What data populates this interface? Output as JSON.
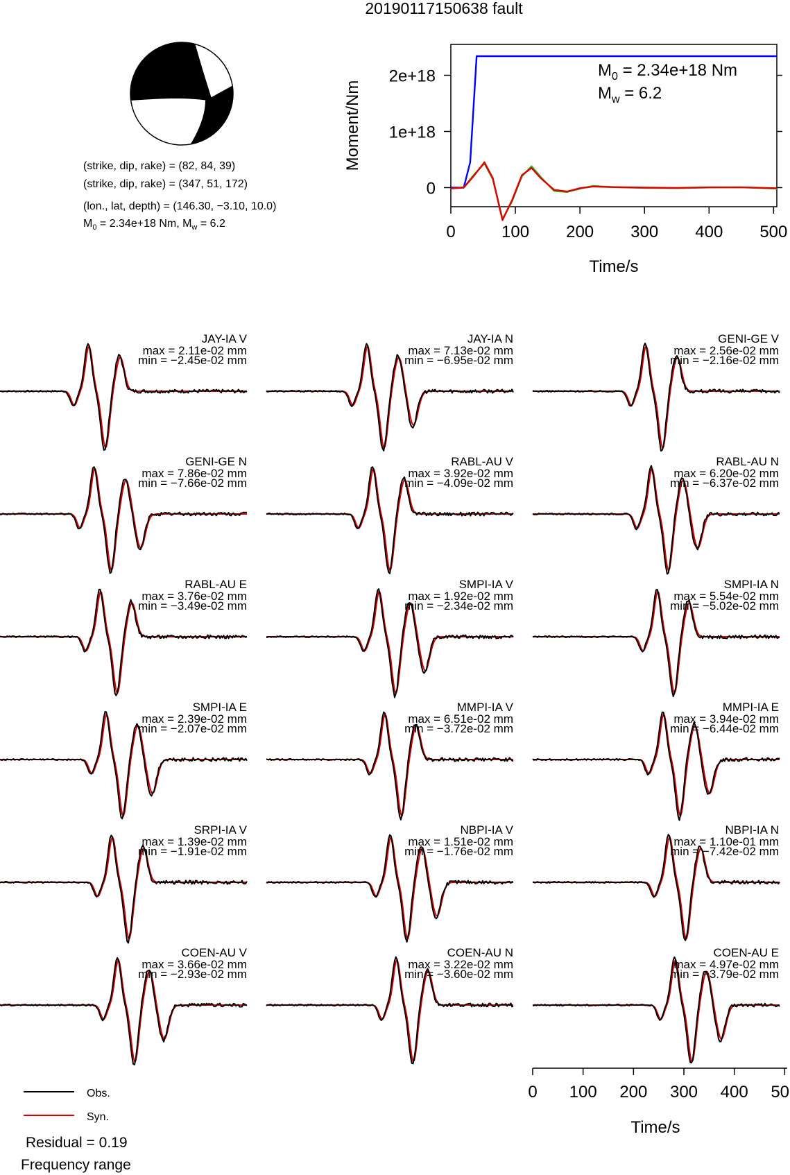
{
  "title": "20190117150638 fault",
  "mechanism": {
    "nodal_plane_1": "(strike, dip, rake) = (82, 84, 39)",
    "nodal_plane_2": "(strike, dip, rake) = (347, 51, 172)",
    "location": "(lon., lat, depth) = (146.30, −3.10, 10.0)",
    "moment_line": "M0 = 2.34e+18 Nm, Mw = 6.2"
  },
  "stf_chart": {
    "ylabel": "Moment/Nm",
    "xlabel": "Time/s",
    "x_ticks": [
      "0",
      "100",
      "200",
      "300",
      "400",
      "500"
    ],
    "y_ticks": [
      "2e+18",
      "1e+18",
      "0"
    ],
    "annotation_m0": "M0 = 2.34e+18 Nm",
    "annotation_mw": "Mw = 6.2"
  },
  "waveform_axis": {
    "xlabel": "Time/s",
    "x_ticks": [
      "0",
      "100",
      "200",
      "300",
      "400",
      "500"
    ]
  },
  "legend": {
    "obs": "Obs.",
    "syn": "Syn.",
    "residual": "Residual = 0.19",
    "frequency": "Frequency range"
  },
  "colors": {
    "observed": "#000000",
    "synthetic": "#e00000",
    "moment": "#0000ff",
    "stf_green": "#22bb22"
  },
  "chart_data": [
    {
      "type": "line",
      "xlabel": "Time/s",
      "ylabel": "Moment/Nm",
      "xlim": [
        0,
        505
      ],
      "ylim": [
        -3.4e+17,
        2.55e+18
      ],
      "series": [
        {
          "x": [
            0,
            20,
            30,
            40,
            505
          ],
          "y": [
            0,
            0,
            4.5e+17,
            2.34e+18,
            2.34e+18
          ]
        },
        {
          "x": [
            0,
            20,
            35,
            52,
            65,
            80,
            95,
            110,
            125,
            140,
            160,
            180,
            200,
            220,
            250,
            300,
            350,
            400,
            450,
            505
          ],
          "y": [
            -1.5e+16,
            0,
            2.2e+17,
            4.3e+17,
            1.5e+17,
            -5.6e+17,
            -2.4e+17,
            2e+17,
            3.8e+17,
            1.8e+17,
            -6e+16,
            -8e+16,
            -2e+16,
            3e+16,
            1e+16,
            -5000000000000000.0,
            -1e+16,
            2000000000000000.0,
            5000000000000000.0,
            -2e+16
          ]
        },
        {
          "x": [
            0,
            20,
            35,
            52,
            65,
            80,
            95,
            110,
            125,
            140,
            160,
            180,
            200,
            220,
            250,
            300,
            350,
            400,
            450,
            505
          ],
          "y": [
            -1.5e+16,
            0,
            2e+17,
            4.5e+17,
            1.7e+17,
            -5.8e+17,
            -2.2e+17,
            2.2e+17,
            3.5e+17,
            1.6e+17,
            -4e+16,
            -7e+16,
            -1e+16,
            2e+16,
            1e+16,
            0,
            -5000000000000000.0,
            5000000000000000.0,
            5000000000000000.0,
            -1e+16
          ]
        }
      ]
    },
    {
      "type": "line",
      "xlabel": "Time/s",
      "xlim": [
        0,
        505
      ],
      "stations": [
        {
          "station": "JAY-IA V",
          "max": "max = 2.11e-02 mm",
          "min": "min = −2.45e-02 mm"
        },
        {
          "station": "JAY-IA N",
          "max": "max = 7.13e-02 mm",
          "min": "min = −6.95e-02 mm"
        },
        {
          "station": "GENI-GE V",
          "max": "max = 2.56e-02 mm",
          "min": "min = −2.16e-02 mm"
        },
        {
          "station": "GENI-GE N",
          "max": "max = 7.86e-02 mm",
          "min": "min = −7.66e-02 mm"
        },
        {
          "station": "RABL-AU V",
          "max": "max = 3.92e-02 mm",
          "min": "min = −4.09e-02 mm"
        },
        {
          "station": "RABL-AU N",
          "max": "max = 6.20e-02 mm",
          "min": "min = −6.37e-02 mm"
        },
        {
          "station": "RABL-AU E",
          "max": "max = 3.76e-02 mm",
          "min": "min = −3.49e-02 mm"
        },
        {
          "station": "SMPI-IA V",
          "max": "max = 1.92e-02 mm",
          "min": "min = −2.34e-02 mm"
        },
        {
          "station": "SMPI-IA N",
          "max": "max = 5.54e-02 mm",
          "min": "min = −5.02e-02 mm"
        },
        {
          "station": "SMPI-IA E",
          "max": "max = 2.39e-02 mm",
          "min": "min = −2.07e-02 mm"
        },
        {
          "station": "MMPI-IA V",
          "max": "max = 6.51e-02 mm",
          "min": "min = −3.72e-02 mm"
        },
        {
          "station": "MMPI-IA E",
          "max": "max = 3.94e-02 mm",
          "min": "min = −6.44e-02 mm"
        },
        {
          "station": "SRPI-IA V",
          "max": "max = 1.39e-02 mm",
          "min": "min = −1.91e-02 mm"
        },
        {
          "station": "NBPI-IA V",
          "max": "max = 1.51e-02 mm",
          "min": "min = −1.76e-02 mm"
        },
        {
          "station": "NBPI-IA N",
          "max": "max = 1.10e-01 mm",
          "min": "min = −7.42e-02 mm"
        },
        {
          "station": "COEN-AU V",
          "max": "max = 3.66e-02 mm",
          "min": "min = −2.93e-02 mm"
        },
        {
          "station": "COEN-AU N",
          "max": "max = 3.22e-02 mm",
          "min": "min = −3.60e-02 mm"
        },
        {
          "station": "COEN-AU E",
          "max": "max = 4.97e-02 mm",
          "min": "min = −3.79e-02 mm"
        }
      ]
    }
  ]
}
